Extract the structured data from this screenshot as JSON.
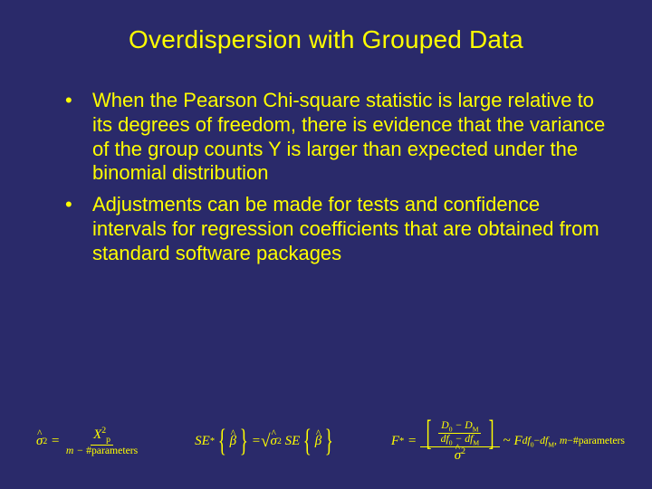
{
  "slide": {
    "background_color": "#2a2a6a",
    "text_color": "#ffff00",
    "title": "Overdispersion with Grouped Data",
    "title_fontsize": 28,
    "body_fontsize": 22,
    "font_family": "Arial",
    "bullets": [
      "When the Pearson Chi-square statistic is large relative to its degrees of freedom, there is evidence that the variance of the group counts Y is larger than expected under the binomial distribution",
      "Adjustments can be made for tests and confidence intervals for regression coefficients that are obtained from standard software packages"
    ],
    "formulas": {
      "font_family": "Times New Roman",
      "fontsize": 15,
      "sigma_hat_sq": {
        "lhs": "σ̂²",
        "eq": "=",
        "num": "X²ₚ",
        "den": "m − #parameters"
      },
      "se_star": {
        "lhs": "SE*",
        "brace_l": "{",
        "beta": "β̂",
        "brace_r": "}",
        "eq": "=",
        "sqrt": "√",
        "sigma": "σ̂²",
        "se": "SE",
        "brace_l2": "{",
        "beta2": "β̂",
        "brace_r2": "}"
      },
      "f_star": {
        "lhs": "F*",
        "eq": "=",
        "bracket_l": "[",
        "num": "D₀ − D_M",
        "den": "df₀ − df_M",
        "bracket_r": "]",
        "over": "σ̂²",
        "dist": "~ F",
        "dist_sub": "df₀−df_M, m−#parameters"
      }
    }
  }
}
